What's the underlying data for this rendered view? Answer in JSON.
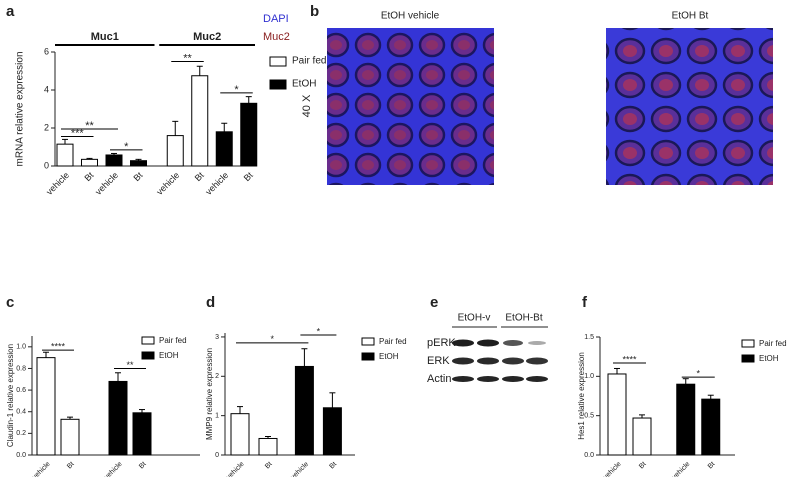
{
  "panel_labels": [
    "a",
    "b",
    "c",
    "d",
    "e",
    "f"
  ],
  "chart_data": [
    {
      "type": "bar",
      "ylabel": "mRNA relative expression",
      "groups": [
        "Muc1",
        "Muc2"
      ],
      "categories": [
        "vehicle",
        "Bt",
        "vehicle",
        "Bt",
        "vehicle",
        "Bt",
        "vehicle",
        "Bt"
      ],
      "series": [
        {
          "name": "Pair fed",
          "color": "#ffffff",
          "values": [
            1.15,
            0.35,
            null,
            null,
            1.6,
            4.75,
            null,
            null
          ],
          "errors": [
            0.25,
            0.05,
            null,
            null,
            0.75,
            0.5,
            null,
            null
          ]
        },
        {
          "name": "EtOH",
          "color": "#000000",
          "values": [
            null,
            null,
            0.58,
            0.28,
            null,
            null,
            1.8,
            3.3
          ],
          "errors": [
            null,
            null,
            0.08,
            0.07,
            null,
            null,
            0.45,
            0.35
          ]
        }
      ],
      "ylim": [
        0,
        6
      ],
      "yticks": [
        0,
        2,
        4,
        6
      ],
      "annotations": [
        {
          "text": "***",
          "categories": [
            0,
            1
          ],
          "y": 1.55
        },
        {
          "text": "**",
          "categories": [
            0,
            2
          ],
          "y": 1.95
        },
        {
          "text": "*",
          "categories": [
            2,
            3
          ],
          "y": 0.85
        },
        {
          "text": "**",
          "categories": [
            4,
            5
          ],
          "y": 5.5
        },
        {
          "text": "*",
          "categories": [
            6,
            7
          ],
          "y": 3.85
        }
      ]
    },
    {
      "type": "bar",
      "ylabel": "Claudin-1 relative expression",
      "categories": [
        "vehicle",
        "Bt",
        "vehicle",
        "Bt"
      ],
      "series": [
        {
          "name": "Pair fed",
          "color": "#ffffff",
          "values": [
            0.9,
            0.33,
            null,
            null
          ],
          "errors": [
            0.05,
            0.02,
            null,
            null
          ]
        },
        {
          "name": "EtOH",
          "color": "#000000",
          "values": [
            null,
            null,
            0.68,
            0.39
          ],
          "errors": [
            null,
            null,
            0.08,
            0.03
          ]
        }
      ],
      "ylim": [
        0,
        1.1
      ],
      "yticks": [
        {
          "value": 0,
          "label": "0.0"
        },
        0.2,
        0.4,
        0.6,
        0.8,
        {
          "value": 1,
          "label": "1.0"
        }
      ],
      "annotations": [
        {
          "text": "****",
          "categories": [
            0,
            1
          ],
          "y": 0.97
        },
        {
          "text": "**",
          "categories": [
            2,
            3
          ],
          "y": 0.8
        }
      ]
    },
    {
      "type": "bar",
      "ylabel": "MMP9 relative expression",
      "categories": [
        "vehicle",
        "Bt",
        "vehicle",
        "Bt"
      ],
      "series": [
        {
          "name": "Pair fed",
          "color": "#ffffff",
          "values": [
            1.05,
            0.42,
            null,
            null
          ],
          "errors": [
            0.18,
            0.05,
            null,
            null
          ]
        },
        {
          "name": "EtOH",
          "color": "#000000",
          "values": [
            null,
            null,
            2.25,
            1.2
          ],
          "errors": [
            null,
            null,
            0.45,
            0.38
          ]
        }
      ],
      "ylim": [
        0,
        3.1
      ],
      "yticks": [
        0,
        1,
        2,
        3
      ],
      "annotations": [
        {
          "text": "*",
          "categories": [
            0,
            2
          ],
          "y": 2.85
        },
        {
          "text": "*",
          "categories": [
            2,
            3
          ],
          "y": 3.05
        }
      ]
    },
    {
      "type": "bar",
      "ylabel": "Hes1 relative expression",
      "categories": [
        "vehicle",
        "Bt",
        "vehicle",
        "Bt"
      ],
      "series": [
        {
          "name": "Pair fed",
          "color": "#ffffff",
          "values": [
            1.03,
            0.47,
            null,
            null
          ],
          "errors": [
            0.07,
            0.04,
            null,
            null
          ]
        },
        {
          "name": "EtOH",
          "color": "#000000",
          "values": [
            null,
            null,
            0.9,
            0.71
          ],
          "errors": [
            null,
            null,
            0.07,
            0.05
          ]
        }
      ],
      "ylim": [
        0,
        1.5
      ],
      "yticks": [
        {
          "value": 0,
          "label": "0.0"
        },
        0.5,
        {
          "value": 1,
          "label": "1.0"
        },
        1.5
      ],
      "annotations": [
        {
          "text": "****",
          "categories": [
            0,
            1
          ],
          "y": 1.17
        },
        {
          "text": "*",
          "categories": [
            2,
            3
          ],
          "y": 0.99
        }
      ]
    }
  ],
  "micrograph": {
    "titles": [
      "EtOH vehicle",
      "EtOH Bt"
    ],
    "stains": [
      "DAPI",
      "Muc2"
    ],
    "magnification": "40 X"
  },
  "blot": {
    "conditions": [
      "EtOH-v",
      "EtOH-Bt"
    ],
    "proteins": [
      "pERK",
      "ERK",
      "Actin"
    ]
  }
}
